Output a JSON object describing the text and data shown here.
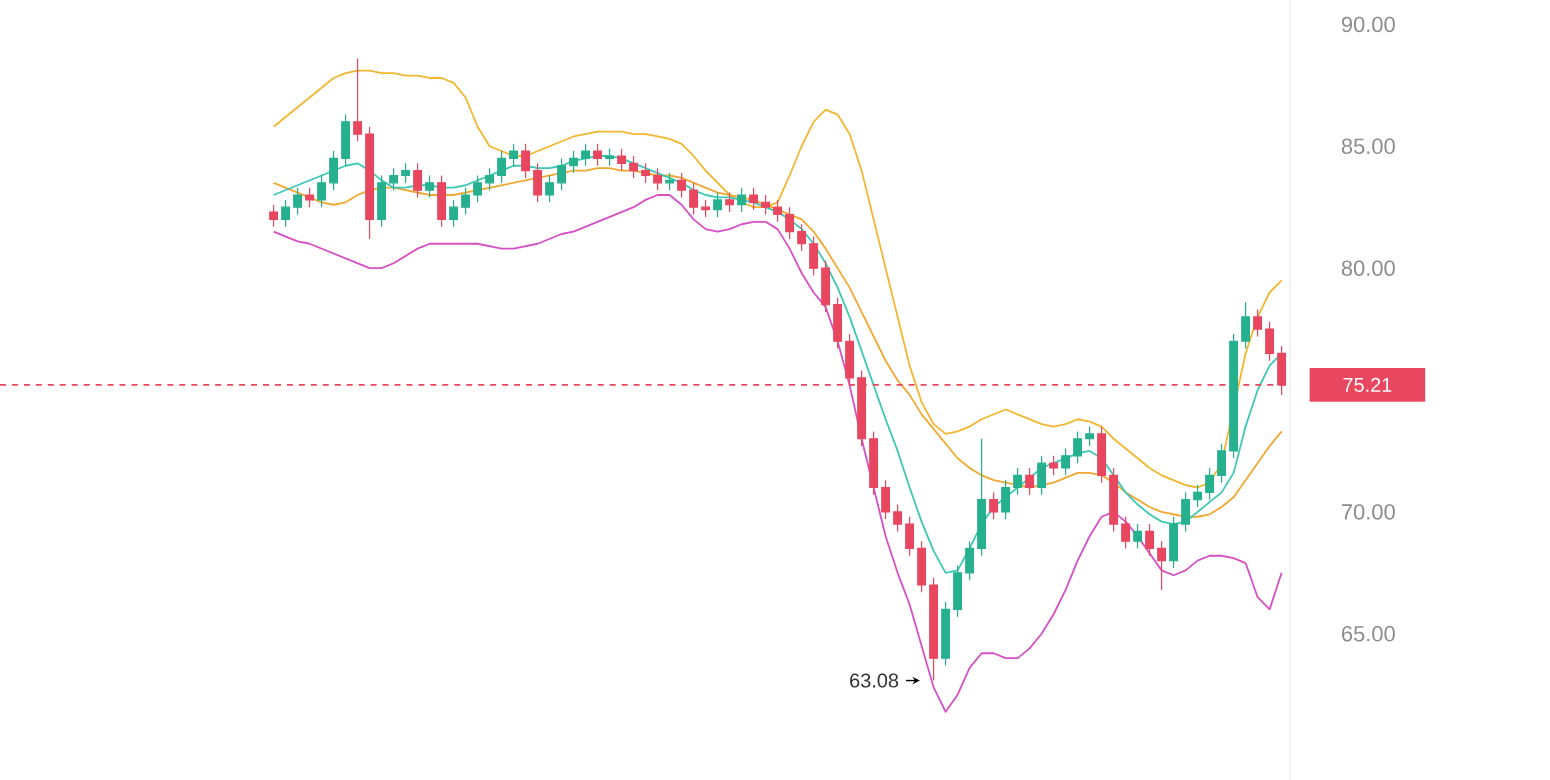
{
  "chart_data": {
    "type": "candlestick",
    "tick_labels": "y",
    "categories": [
      null,
      null,
      null,
      null,
      null,
      null,
      null,
      null,
      null,
      null,
      null,
      null,
      null,
      null,
      null,
      null,
      null,
      null,
      null,
      null,
      null,
      null,
      null,
      null,
      null,
      null,
      null,
      null,
      null,
      null,
      null,
      null,
      null,
      null,
      null,
      null,
      null,
      null,
      null,
      null,
      null,
      null,
      null,
      null,
      null,
      null,
      null,
      null,
      null,
      null,
      null,
      null,
      null,
      null,
      null,
      null,
      null,
      null,
      null,
      null,
      null,
      null,
      null,
      null,
      null,
      null,
      null,
      null,
      null,
      null,
      null,
      null,
      null,
      null,
      null,
      null,
      null,
      null,
      null,
      null,
      null,
      null,
      null,
      null,
      null
    ],
    "colors": [
      "#e8475f",
      "#26b08e",
      "#26b08e",
      "#e8475f",
      "#26b08e",
      "#26b08e",
      "#26b08e",
      "#e8475f",
      "#e8475f",
      "#26b08e",
      "#26b08e",
      "#26b08e",
      "#e8475f",
      "#26b08e",
      "#e8475f",
      "#26b08e",
      "#26b08e",
      "#26b08e",
      "#26b08e",
      "#26b08e",
      "#26b08e",
      "#e8475f",
      "#e8475f",
      "#26b08e",
      "#26b08e",
      "#26b08e",
      "#26b08e",
      "#e8475f",
      "#26b08e",
      "#e8475f",
      "#e8475f",
      "#e8475f",
      "#e8475f",
      "#26b08e",
      "#e8475f",
      "#e8475f",
      "#e8475f",
      "#26b08e",
      "#e8475f",
      "#26b08e",
      "#e8475f",
      "#e8475f",
      "#e8475f",
      "#e8475f",
      "#e8475f",
      "#e8475f",
      "#e8475f",
      "#e8475f",
      "#e8475f",
      "#e8475f",
      "#e8475f",
      "#e8475f",
      "#e8475f",
      "#e8475f",
      "#e8475f",
      "#e8475f",
      "#26b08e",
      "#26b08e",
      "#26b08e",
      "#26b08e",
      "#e8475f",
      "#26b08e",
      "#26b08e",
      "#e8475f",
      "#26b08e",
      "#e8475f",
      "#26b08e",
      "#26b08e",
      "#26b08e",
      "#e8475f",
      "#e8475f",
      "#e8475f",
      "#26b08e",
      "#e8475f",
      "#e8475f",
      "#26b08e",
      "#26b08e",
      "#26b08e",
      "#26b08e",
      "#26b08e",
      "#26b08e",
      "#26b08e",
      "#e8475f",
      "#e8475f",
      "#e8475f"
    ],
    "ohlc": [
      [
        82.3,
        82.6,
        81.7,
        82.0
      ],
      [
        82.0,
        82.8,
        81.7,
        82.5
      ],
      [
        82.5,
        83.3,
        82.2,
        83.0
      ],
      [
        83.0,
        83.3,
        82.5,
        82.8
      ],
      [
        82.8,
        83.8,
        82.5,
        83.5
      ],
      [
        83.5,
        84.8,
        83.2,
        84.5
      ],
      [
        84.5,
        86.3,
        84.2,
        86.0
      ],
      [
        86.0,
        88.6,
        85.2,
        85.5
      ],
      [
        85.5,
        85.8,
        81.2,
        82.0
      ],
      [
        82.0,
        83.8,
        81.7,
        83.5
      ],
      [
        83.5,
        84.1,
        83.2,
        83.8
      ],
      [
        83.8,
        84.3,
        83.5,
        84.0
      ],
      [
        84.0,
        84.3,
        82.9,
        83.2
      ],
      [
        83.2,
        83.8,
        82.9,
        83.5
      ],
      [
        83.5,
        83.8,
        81.7,
        82.0
      ],
      [
        82.0,
        82.8,
        81.7,
        82.5
      ],
      [
        82.5,
        83.3,
        82.2,
        83.0
      ],
      [
        83.0,
        83.8,
        82.7,
        83.5
      ],
      [
        83.5,
        84.1,
        83.2,
        83.8
      ],
      [
        83.8,
        84.8,
        83.5,
        84.5
      ],
      [
        84.5,
        85.1,
        84.2,
        84.8
      ],
      [
        84.8,
        85.1,
        83.7,
        84.0
      ],
      [
        84.0,
        84.3,
        82.7,
        83.0
      ],
      [
        83.0,
        83.8,
        82.7,
        83.5
      ],
      [
        83.5,
        84.5,
        83.2,
        84.2
      ],
      [
        84.2,
        84.8,
        83.9,
        84.5
      ],
      [
        84.5,
        85.1,
        84.2,
        84.8
      ],
      [
        84.8,
        85.1,
        84.2,
        84.5
      ],
      [
        84.5,
        84.9,
        84.2,
        84.6
      ],
      [
        84.6,
        84.9,
        84.0,
        84.3
      ],
      [
        84.3,
        84.6,
        83.7,
        84.0
      ],
      [
        84.0,
        84.3,
        83.5,
        83.8
      ],
      [
        83.8,
        84.1,
        83.2,
        83.5
      ],
      [
        83.5,
        83.9,
        83.2,
        83.6
      ],
      [
        83.6,
        83.9,
        82.9,
        83.2
      ],
      [
        83.2,
        83.5,
        82.2,
        82.5
      ],
      [
        82.5,
        82.8,
        82.1,
        82.4
      ],
      [
        82.4,
        83.1,
        82.1,
        82.8
      ],
      [
        82.8,
        83.1,
        82.3,
        82.6
      ],
      [
        82.6,
        83.3,
        82.3,
        83.0
      ],
      [
        83.0,
        83.3,
        82.4,
        82.7
      ],
      [
        82.7,
        83.0,
        82.2,
        82.5
      ],
      [
        82.5,
        82.8,
        81.9,
        82.2
      ],
      [
        82.2,
        82.5,
        81.2,
        81.5
      ],
      [
        81.5,
        81.8,
        80.7,
        81.0
      ],
      [
        81.0,
        81.3,
        79.7,
        80.0
      ],
      [
        80.0,
        80.3,
        78.2,
        78.5
      ],
      [
        78.5,
        78.8,
        76.7,
        77.0
      ],
      [
        77.0,
        77.3,
        75.2,
        75.5
      ],
      [
        75.5,
        75.8,
        72.7,
        73.0
      ],
      [
        73.0,
        73.3,
        70.7,
        71.0
      ],
      [
        71.0,
        71.3,
        69.7,
        70.0
      ],
      [
        70.0,
        70.3,
        69.2,
        69.5
      ],
      [
        69.5,
        69.8,
        68.2,
        68.5
      ],
      [
        68.5,
        68.8,
        66.7,
        67.0
      ],
      [
        67.0,
        67.3,
        63.08,
        64.0
      ],
      [
        64.0,
        66.3,
        63.7,
        66.0
      ],
      [
        66.0,
        67.8,
        65.7,
        67.5
      ],
      [
        67.5,
        68.8,
        67.2,
        68.5
      ],
      [
        68.5,
        73.0,
        68.2,
        70.5
      ],
      [
        70.5,
        70.8,
        69.7,
        70.0
      ],
      [
        70.0,
        71.3,
        69.7,
        71.0
      ],
      [
        71.0,
        71.8,
        70.7,
        71.5
      ],
      [
        71.5,
        71.8,
        70.7,
        71.0
      ],
      [
        71.0,
        72.3,
        70.7,
        72.0
      ],
      [
        72.0,
        72.3,
        71.5,
        71.8
      ],
      [
        71.8,
        72.6,
        71.5,
        72.3
      ],
      [
        72.3,
        73.3,
        72.0,
        73.0
      ],
      [
        73.0,
        73.5,
        72.7,
        73.2
      ],
      [
        73.2,
        73.5,
        71.2,
        71.5
      ],
      [
        71.5,
        71.8,
        69.2,
        69.5
      ],
      [
        69.5,
        69.8,
        68.5,
        68.8
      ],
      [
        68.8,
        69.5,
        68.5,
        69.2
      ],
      [
        69.2,
        69.5,
        68.2,
        68.5
      ],
      [
        68.5,
        68.8,
        66.8,
        68.0
      ],
      [
        68.0,
        69.8,
        67.7,
        69.5
      ],
      [
        69.5,
        70.8,
        69.2,
        70.5
      ],
      [
        70.5,
        71.1,
        70.2,
        70.8
      ],
      [
        70.8,
        71.8,
        70.5,
        71.5
      ],
      [
        71.5,
        72.8,
        71.2,
        72.5
      ],
      [
        72.5,
        77.3,
        72.2,
        77.0
      ],
      [
        77.0,
        78.6,
        76.7,
        78.0
      ],
      [
        78.0,
        78.3,
        77.2,
        77.5
      ],
      [
        77.5,
        77.8,
        76.2,
        76.5
      ],
      [
        76.5,
        76.8,
        74.8,
        75.21
      ]
    ],
    "series": [
      {
        "type": "line",
        "color": "#f2b630",
        "values": [
          85.8,
          86.2,
          86.6,
          87.0,
          87.4,
          87.8,
          88.0,
          88.1,
          88.1,
          88.0,
          88.0,
          87.9,
          87.9,
          87.8,
          87.8,
          87.6,
          87.0,
          85.8,
          85.0,
          84.8,
          84.6,
          84.6,
          84.8,
          85.0,
          85.2,
          85.4,
          85.5,
          85.6,
          85.6,
          85.6,
          85.5,
          85.5,
          85.4,
          85.3,
          85.1,
          84.6,
          84.0,
          83.5,
          83.0,
          82.7,
          82.5,
          82.5,
          82.7,
          83.8,
          85.0,
          86.0,
          86.5,
          86.3,
          85.5,
          84.0,
          82.0,
          80.0,
          78.0,
          76.0,
          74.5,
          73.6,
          73.2,
          73.3,
          73.5,
          73.8,
          74.0,
          74.2,
          74.0,
          73.8,
          73.6,
          73.5,
          73.6,
          73.8,
          73.7,
          73.5,
          73.0,
          72.6,
          72.2,
          71.8,
          71.5,
          71.3,
          71.1,
          71.0,
          71.2,
          72.0,
          null,
          76.5,
          78.0,
          79.0,
          79.5
        ]
      },
      {
        "type": "line",
        "color": "#f0a830",
        "values": [
          83.5,
          83.3,
          83.1,
          82.9,
          82.7,
          82.6,
          82.7,
          83.0,
          83.2,
          83.3,
          83.3,
          83.2,
          83.1,
          83.0,
          83.0,
          83.0,
          83.1,
          83.2,
          83.3,
          83.4,
          83.5,
          83.6,
          83.7,
          83.8,
          83.9,
          84.0,
          84.0,
          84.1,
          84.1,
          84.0,
          84.0,
          83.9,
          83.8,
          83.8,
          83.7,
          83.5,
          83.3,
          83.1,
          83.0,
          82.9,
          82.8,
          82.6,
          82.4,
          82.2,
          82.0,
          81.5,
          80.8,
          80.0,
          79.2,
          78.2,
          77.2,
          76.2,
          75.4,
          74.8,
          74.0,
          73.4,
          72.8,
          72.2,
          71.8,
          71.5,
          71.3,
          71.2,
          71.1,
          71.0,
          71.1,
          71.2,
          71.4,
          71.6,
          71.6,
          71.5,
          71.2,
          70.8,
          70.5,
          70.2,
          70.0,
          69.9,
          69.8,
          69.8,
          69.9,
          70.2,
          70.6,
          71.3,
          72.0,
          72.7,
          73.3
        ]
      },
      {
        "type": "line",
        "color": "#d64fc4",
        "values": [
          81.5,
          81.3,
          81.1,
          81.0,
          80.8,
          80.6,
          80.4,
          80.2,
          80.0,
          80.0,
          80.2,
          80.5,
          80.8,
          81.0,
          81.0,
          81.0,
          81.0,
          81.0,
          80.9,
          80.8,
          80.8,
          80.9,
          81.0,
          81.2,
          81.4,
          81.5,
          81.7,
          81.9,
          82.1,
          82.3,
          82.5,
          82.8,
          83.0,
          83.0,
          82.6,
          82.0,
          81.6,
          81.5,
          81.6,
          81.8,
          81.9,
          81.9,
          81.6,
          80.8,
          79.8,
          79.0,
          78.4,
          77.0,
          75.2,
          73.0,
          71.0,
          69.0,
          67.5,
          66.2,
          64.5,
          62.8,
          61.8,
          62.5,
          63.6,
          64.2,
          64.2,
          64.0,
          64.0,
          64.4,
          65.0,
          65.8,
          66.8,
          68.0,
          69.0,
          69.8,
          70.0,
          69.6,
          69.0,
          68.3,
          67.6,
          67.4,
          67.6,
          68.0,
          68.2,
          68.2,
          68.1,
          67.9,
          66.5,
          66.0,
          67.5
        ]
      },
      {
        "type": "line",
        "color": "#3cc8b4",
        "values": [
          83.0,
          83.2,
          83.4,
          83.6,
          83.8,
          84.0,
          84.2,
          84.3,
          84.0,
          83.6,
          83.3,
          83.3,
          83.4,
          83.4,
          83.3,
          83.3,
          83.4,
          83.6,
          83.8,
          84.0,
          84.2,
          84.2,
          84.1,
          84.1,
          84.2,
          84.4,
          84.5,
          84.6,
          84.6,
          84.5,
          84.3,
          84.1,
          83.9,
          83.7,
          83.5,
          83.2,
          83.0,
          82.9,
          82.9,
          82.8,
          82.7,
          82.5,
          82.3,
          82.0,
          81.6,
          81.0,
          80.2,
          79.2,
          78.0,
          76.6,
          75.2,
          73.8,
          72.5,
          71.0,
          69.6,
          68.4,
          67.5,
          67.6,
          68.5,
          69.5,
          70.2,
          70.6,
          71.0,
          71.4,
          71.8,
          72.0,
          72.2,
          72.4,
          72.5,
          72.2,
          71.5,
          70.8,
          70.3,
          69.9,
          69.6,
          69.5,
          69.6,
          70.0,
          70.4,
          70.8,
          71.6,
          73.5,
          75.0,
          76.0,
          76.5
        ]
      }
    ],
    "ylim": [
      59,
      91
    ],
    "yticks": [
      {
        "value": 65,
        "label": "65.00"
      },
      {
        "value": 70,
        "label": "70.00"
      },
      {
        "value": 80,
        "label": "80.00"
      },
      {
        "value": 85,
        "label": "85.00"
      },
      {
        "value": 90,
        "label": "90.00"
      }
    ],
    "ref_lines": [
      {
        "axis": "y",
        "value": 75.21,
        "label": "75.21",
        "color": "#e8475f",
        "line_style": "dashed"
      }
    ],
    "annotations": [
      "63.08"
    ]
  }
}
